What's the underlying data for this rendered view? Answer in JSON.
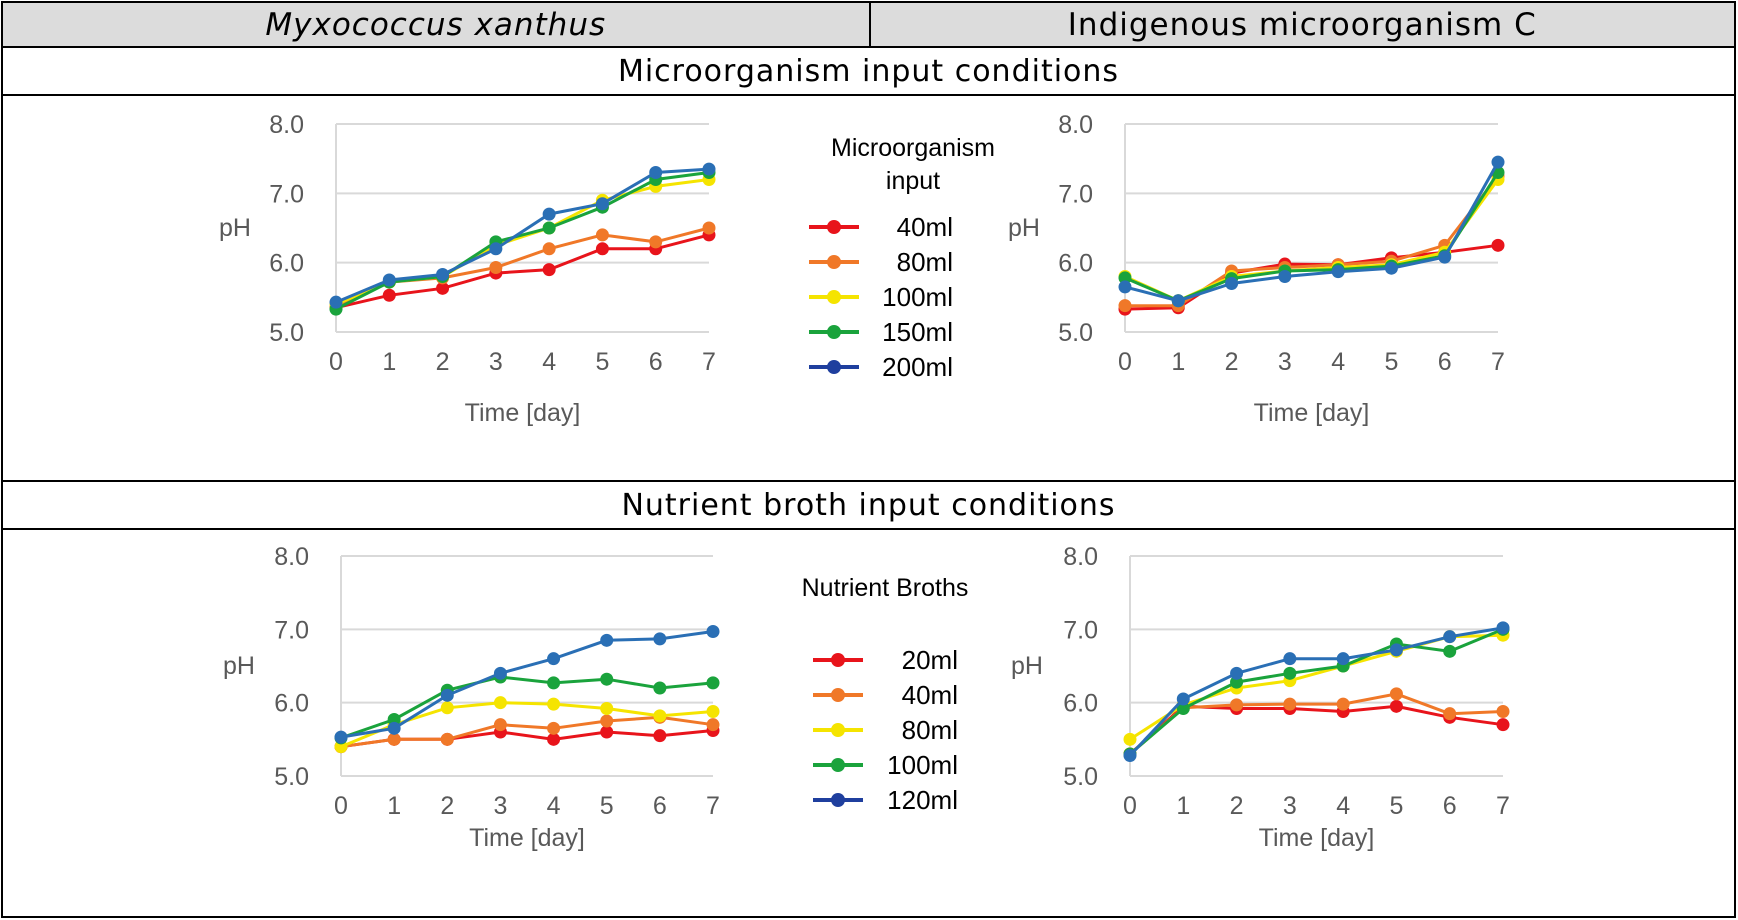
{
  "header": {
    "left": "Myxococcus xanthus",
    "right": "Indigenous microorganism C"
  },
  "sections": [
    {
      "title": "Microorganism input conditions"
    },
    {
      "title": "Nutrient broth input conditions"
    }
  ],
  "legends": [
    {
      "title_lines": [
        "Microorganism",
        "input"
      ],
      "entries": [
        {
          "label": "40ml",
          "color": "#e8141b"
        },
        {
          "label": "80ml",
          "color": "#f07828"
        },
        {
          "label": "100ml",
          "color": "#f5e400"
        },
        {
          "label": "150ml",
          "color": "#1aa33c"
        },
        {
          "label": "200ml",
          "color": "#1f3f9e"
        }
      ]
    },
    {
      "title_lines": [
        "Nutrient Broths"
      ],
      "entries": [
        {
          "label": "20ml",
          "color": "#e8141b"
        },
        {
          "label": "40ml",
          "color": "#f07828"
        },
        {
          "label": "80ml",
          "color": "#f5e400"
        },
        {
          "label": "100ml",
          "color": "#1aa33c"
        },
        {
          "label": "120ml",
          "color": "#1f3f9e"
        }
      ]
    }
  ],
  "chart_data": [
    {
      "type": "line",
      "panel": "Myxococcus xanthus - Microorganism input conditions",
      "x": [
        0,
        1,
        2,
        3,
        4,
        5,
        6,
        7
      ],
      "xlabel": "Time [day]",
      "ylabel": "pH",
      "ylim": [
        5.0,
        8.0
      ],
      "y_ticks": [
        "5.0",
        "6.0",
        "7.0",
        "8.0"
      ],
      "x_ticks": [
        "0",
        "1",
        "2",
        "3",
        "4",
        "5",
        "6",
        "7"
      ],
      "series": [
        {
          "name": "40ml",
          "color": "#e8141b",
          "values": [
            5.35,
            5.53,
            5.63,
            5.85,
            5.9,
            6.2,
            6.2,
            6.4
          ]
        },
        {
          "name": "80ml",
          "color": "#f07828",
          "values": [
            5.35,
            5.72,
            5.78,
            5.93,
            6.2,
            6.4,
            6.3,
            6.5
          ]
        },
        {
          "name": "100ml",
          "color": "#f5e400",
          "values": [
            5.4,
            5.72,
            5.8,
            6.25,
            6.5,
            6.9,
            7.1,
            7.2
          ]
        },
        {
          "name": "150ml",
          "color": "#1aa33c",
          "values": [
            5.33,
            5.72,
            5.8,
            6.3,
            6.5,
            6.8,
            7.2,
            7.3
          ]
        },
        {
          "name": "200ml",
          "color": "#2a6fb5",
          "values": [
            5.43,
            5.75,
            5.83,
            6.2,
            6.7,
            6.85,
            7.3,
            7.35
          ]
        }
      ]
    },
    {
      "type": "line",
      "panel": "Indigenous microorganism C - Microorganism input conditions",
      "x": [
        0,
        1,
        2,
        3,
        4,
        5,
        6,
        7
      ],
      "xlabel": "Time [day]",
      "ylabel": "pH",
      "ylim": [
        5.0,
        8.0
      ],
      "y_ticks": [
        "5.0",
        "6.0",
        "7.0",
        "8.0"
      ],
      "x_ticks": [
        "0",
        "1",
        "2",
        "3",
        "4",
        "5",
        "6",
        "7"
      ],
      "series": [
        {
          "name": "40ml",
          "color": "#e8141b",
          "values": [
            5.33,
            5.35,
            5.85,
            5.98,
            5.97,
            6.07,
            6.15,
            6.25
          ]
        },
        {
          "name": "80ml",
          "color": "#f07828",
          "values": [
            5.38,
            5.38,
            5.88,
            5.93,
            5.97,
            6.02,
            6.25,
            7.25
          ]
        },
        {
          "name": "100ml",
          "color": "#f5e400",
          "values": [
            5.8,
            5.45,
            5.8,
            5.88,
            5.93,
            5.97,
            6.15,
            7.2
          ]
        },
        {
          "name": "150ml",
          "color": "#1aa33c",
          "values": [
            5.78,
            5.45,
            5.77,
            5.88,
            5.9,
            5.95,
            6.1,
            7.3
          ]
        },
        {
          "name": "200ml",
          "color": "#2a6fb5",
          "values": [
            5.65,
            5.45,
            5.7,
            5.8,
            5.87,
            5.92,
            6.08,
            7.45
          ]
        }
      ]
    },
    {
      "type": "line",
      "panel": "Myxococcus xanthus - Nutrient broth input conditions",
      "x": [
        0,
        1,
        2,
        3,
        4,
        5,
        6,
        7
      ],
      "xlabel": "Time [day]",
      "ylabel": "pH",
      "ylim": [
        5.0,
        8.0
      ],
      "y_ticks": [
        "5.0",
        "6.0",
        "7.0",
        "8.0"
      ],
      "x_ticks": [
        "0",
        "1",
        "2",
        "3",
        "4",
        "5",
        "6",
        "7"
      ],
      "series": [
        {
          "name": "20ml",
          "color": "#e8141b",
          "values": [
            5.4,
            5.5,
            5.5,
            5.6,
            5.5,
            5.6,
            5.55,
            5.62
          ]
        },
        {
          "name": "40ml",
          "color": "#f07828",
          "values": [
            5.4,
            5.5,
            5.5,
            5.7,
            5.65,
            5.75,
            5.8,
            5.7
          ]
        },
        {
          "name": "80ml",
          "color": "#f5e400",
          "values": [
            5.4,
            5.7,
            5.93,
            6.0,
            5.98,
            5.92,
            5.82,
            5.88
          ]
        },
        {
          "name": "100ml",
          "color": "#1aa33c",
          "values": [
            5.52,
            5.77,
            6.17,
            6.35,
            6.27,
            6.32,
            6.2,
            6.27
          ]
        },
        {
          "name": "120ml",
          "color": "#2a6fb5",
          "values": [
            5.53,
            5.65,
            6.1,
            6.4,
            6.6,
            6.85,
            6.87,
            6.97
          ]
        }
      ]
    },
    {
      "type": "line",
      "panel": "Indigenous microorganism C - Nutrient broth input conditions",
      "x": [
        0,
        1,
        2,
        3,
        4,
        5,
        6,
        7
      ],
      "xlabel": "Time [day]",
      "ylabel": "pH",
      "ylim": [
        5.0,
        8.0
      ],
      "y_ticks": [
        "5.0",
        "6.0",
        "7.0",
        "8.0"
      ],
      "x_ticks": [
        "0",
        "1",
        "2",
        "3",
        "4",
        "5",
        "6",
        "7"
      ],
      "series": [
        {
          "name": "20ml",
          "color": "#e8141b",
          "values": [
            5.3,
            5.95,
            5.92,
            5.92,
            5.88,
            5.95,
            5.8,
            5.7
          ]
        },
        {
          "name": "40ml",
          "color": "#f07828",
          "values": [
            5.3,
            5.93,
            5.97,
            5.98,
            5.98,
            6.12,
            5.85,
            5.88
          ]
        },
        {
          "name": "80ml",
          "color": "#f5e400",
          "values": [
            5.5,
            5.97,
            6.2,
            6.3,
            6.5,
            6.7,
            6.9,
            6.92
          ]
        },
        {
          "name": "100ml",
          "color": "#1aa33c",
          "values": [
            5.3,
            5.92,
            6.28,
            6.4,
            6.5,
            6.8,
            6.7,
            7.0
          ]
        },
        {
          "name": "120ml",
          "color": "#2a6fb5",
          "values": [
            5.28,
            6.05,
            6.4,
            6.6,
            6.6,
            6.72,
            6.9,
            7.02
          ]
        }
      ]
    }
  ]
}
